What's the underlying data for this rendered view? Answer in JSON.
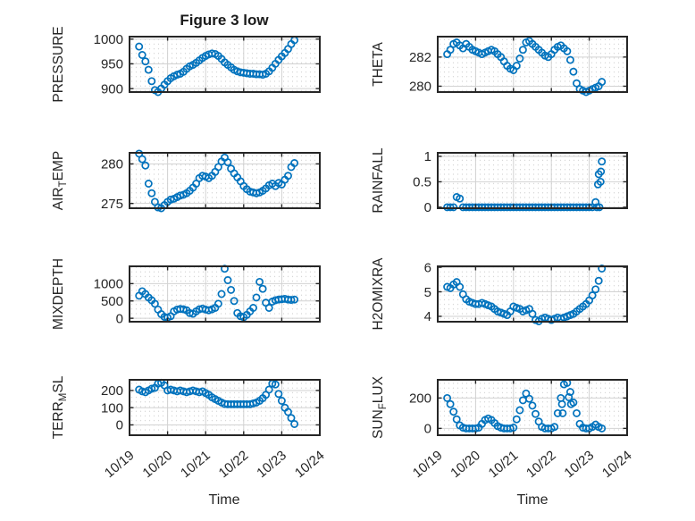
{
  "chart_data": {
    "type": "scatter",
    "title": "Figure 3 low",
    "xlabel": "Time",
    "xlim": [
      0,
      5
    ],
    "x_tick_values": [
      0,
      1,
      2,
      3,
      4,
      5
    ],
    "x_tick_labels": [
      "10/19",
      "10/20",
      "10/21",
      "10/22",
      "10/23",
      "10/24"
    ],
    "x_days": [
      0.25,
      0.333,
      0.417,
      0.5,
      0.583,
      0.667,
      0.75,
      0.833,
      0.917,
      1.0,
      1.083,
      1.167,
      1.25,
      1.333,
      1.417,
      1.5,
      1.583,
      1.667,
      1.75,
      1.833,
      1.917,
      2.0,
      2.083,
      2.167,
      2.25,
      2.333,
      2.417,
      2.5,
      2.583,
      2.667,
      2.75,
      2.833,
      2.917,
      3.0,
      3.083,
      3.167,
      3.25,
      3.333,
      3.417,
      3.5,
      3.583,
      3.667,
      3.75,
      3.833,
      3.917,
      4.0,
      4.083,
      4.167,
      4.25,
      4.333
    ],
    "marker": {
      "shape": "open-circle",
      "color": "#0072BD"
    },
    "grid": {
      "major": true,
      "minor_dotted": true
    },
    "subplots": [
      {
        "name": "PRESSURE",
        "ylabel_parts": [
          [
            "PRESSURE",
            false
          ]
        ],
        "ylim": [
          893,
          1005
        ],
        "ytick_values": [
          900,
          950,
          1000
        ],
        "ytick_labels": [
          "900",
          "950",
          "1000"
        ],
        "y": [
          985,
          968,
          955,
          938,
          915,
          897,
          893,
          900,
          908,
          915,
          921,
          925,
          928,
          930,
          934,
          940,
          945,
          948,
          952,
          957,
          962,
          966,
          969,
          971,
          970,
          966,
          960,
          953,
          948,
          943,
          938,
          935,
          933,
          932,
          931,
          930,
          930,
          929,
          929,
          928,
          930,
          935,
          942,
          950,
          958,
          965,
          972,
          980,
          990,
          998
        ],
        "extra_points": []
      },
      {
        "name": "THETA",
        "ylabel_parts": [
          [
            "THETA",
            false
          ]
        ],
        "ylim": [
          279.6,
          283.4
        ],
        "ytick_values": [
          280,
          282
        ],
        "ytick_labels": [
          "280",
          "282"
        ],
        "y": [
          282.2,
          282.5,
          282.9,
          283.0,
          282.8,
          282.6,
          282.9,
          282.7,
          282.5,
          282.4,
          282.3,
          282.2,
          282.3,
          282.4,
          282.5,
          282.4,
          282.2,
          282.0,
          281.7,
          281.4,
          281.2,
          281.1,
          281.4,
          281.9,
          282.5,
          283.0,
          283.1,
          282.9,
          282.7,
          282.5,
          282.3,
          282.1,
          282.0,
          282.2,
          282.5,
          282.7,
          282.8,
          282.6,
          282.4,
          281.8,
          281.0,
          280.2,
          279.8,
          279.7,
          279.6,
          279.7,
          279.8,
          279.9,
          280.0,
          280.3
        ],
        "extra_points": []
      },
      {
        "name": "AIR_TEMP",
        "ylabel_parts": [
          [
            "AIR",
            false
          ],
          [
            "T",
            true
          ],
          [
            "EMP",
            false
          ]
        ],
        "ylim": [
          274.4,
          281.4
        ],
        "ytick_values": [
          275,
          280
        ],
        "ytick_labels": [
          "275",
          "280"
        ],
        "y": [
          281.3,
          280.6,
          279.8,
          277.5,
          276.3,
          275.2,
          274.5,
          274.4,
          274.8,
          275.2,
          275.5,
          275.6,
          275.8,
          276.0,
          276.1,
          276.3,
          276.6,
          277.0,
          277.5,
          278.2,
          278.5,
          278.4,
          278.2,
          278.5,
          279.0,
          279.6,
          280.3,
          280.8,
          280.2,
          279.4,
          278.8,
          278.3,
          277.8,
          277.2,
          276.8,
          276.5,
          276.4,
          276.3,
          276.4,
          276.6,
          276.9,
          277.3,
          277.5,
          277.2,
          277.6,
          277.4,
          278.0,
          278.5,
          279.6,
          280.1
        ],
        "extra_points": []
      },
      {
        "name": "RAINFALL",
        "ylabel_parts": [
          [
            "RAINFALL",
            false
          ]
        ],
        "ylim": [
          -0.02,
          1.07
        ],
        "ytick_values": [
          0,
          0.5,
          1
        ],
        "ytick_labels": [
          "0",
          "0.5",
          "1"
        ],
        "y": [
          0,
          0,
          0,
          0.2,
          0.17,
          0,
          0,
          0,
          0,
          0,
          0,
          0,
          0,
          0,
          0,
          0,
          0,
          0,
          0,
          0,
          0,
          0,
          0,
          0,
          0,
          0,
          0,
          0,
          0,
          0,
          0,
          0,
          0,
          0,
          0,
          0,
          0,
          0,
          0,
          0,
          0,
          0,
          0,
          0,
          0,
          0,
          0,
          0.1,
          0.65,
          0.9
        ],
        "extra_points": [
          [
            4.2,
            0
          ],
          [
            4.27,
            0
          ],
          [
            4.23,
            0.45
          ],
          [
            4.3,
            0.5
          ],
          [
            4.31,
            0.7
          ]
        ]
      },
      {
        "name": "MIXDEPTH",
        "ylabel_parts": [
          [
            "MIXDEPTH",
            false
          ]
        ],
        "ylim": [
          -100,
          1500
        ],
        "ytick_values": [
          0,
          500,
          1000
        ],
        "ytick_labels": [
          "0",
          "500",
          "1000"
        ],
        "y": [
          650,
          780,
          700,
          600,
          520,
          420,
          250,
          120,
          40,
          20,
          60,
          200,
          250,
          270,
          260,
          230,
          150,
          130,
          200,
          260,
          280,
          250,
          230,
          260,
          300,
          420,
          700,
          1430,
          1100,
          820,
          500,
          150,
          60,
          30,
          100,
          200,
          300,
          600,
          1050,
          850,
          450,
          300,
          480,
          520,
          540,
          550,
          560,
          540,
          530,
          540
        ],
        "extra_points": []
      },
      {
        "name": "H2OMIXRA",
        "ylabel_parts": [
          [
            "H2OMIXRA",
            false
          ]
        ],
        "ylim": [
          3.78,
          6.04
        ],
        "ytick_values": [
          4,
          5,
          6
        ],
        "ytick_labels": [
          "4",
          "5",
          "6"
        ],
        "y": [
          5.2,
          5.15,
          5.3,
          5.4,
          5.2,
          4.9,
          4.7,
          4.6,
          4.55,
          4.5,
          4.5,
          4.55,
          4.5,
          4.45,
          4.4,
          4.3,
          4.2,
          4.15,
          4.1,
          4.05,
          4.2,
          4.4,
          4.35,
          4.3,
          4.2,
          4.25,
          4.3,
          4.1,
          3.85,
          3.8,
          3.9,
          3.95,
          3.9,
          3.85,
          3.9,
          3.95,
          3.9,
          3.95,
          4.0,
          4.05,
          4.1,
          4.2,
          4.3,
          4.4,
          4.5,
          4.65,
          4.85,
          5.1,
          5.45,
          5.95
        ],
        "extra_points": []
      },
      {
        "name": "TERR_MSL",
        "ylabel_parts": [
          [
            "TERR",
            false
          ],
          [
            "M",
            true
          ],
          [
            "SL",
            false
          ]
        ],
        "ylim": [
          -60,
          262
        ],
        "ytick_values": [
          0,
          100,
          200
        ],
        "ytick_labels": [
          "0",
          "100",
          "200"
        ],
        "y": [
          205,
          195,
          190,
          200,
          210,
          215,
          240,
          245,
          230,
          200,
          205,
          200,
          195,
          200,
          195,
          190,
          195,
          200,
          195,
          190,
          195,
          185,
          175,
          160,
          150,
          140,
          130,
          122,
          120,
          120,
          120,
          120,
          120,
          120,
          120,
          120,
          125,
          130,
          140,
          155,
          175,
          205,
          240,
          235,
          180,
          140,
          100,
          75,
          40,
          5
        ],
        "extra_points": []
      },
      {
        "name": "SUN_FLUX",
        "ylabel_parts": [
          [
            "SUN",
            false
          ],
          [
            "F",
            true
          ],
          [
            "LUX",
            false
          ]
        ],
        "ylim": [
          -45,
          320
        ],
        "ytick_values": [
          0,
          200
        ],
        "ytick_labels": [
          "0",
          "200"
        ],
        "y": [
          200,
          160,
          110,
          60,
          20,
          5,
          0,
          0,
          0,
          0,
          5,
          30,
          55,
          65,
          55,
          35,
          15,
          5,
          0,
          0,
          0,
          5,
          60,
          120,
          185,
          230,
          195,
          150,
          95,
          45,
          10,
          0,
          0,
          0,
          10,
          100,
          200,
          290,
          300,
          240,
          170,
          100,
          30,
          5,
          0,
          0,
          10,
          25,
          10,
          0
        ],
        "extra_points": [
          [
            3.28,
            160
          ],
          [
            3.3,
            100
          ],
          [
            3.46,
            205
          ],
          [
            3.52,
            160
          ]
        ]
      }
    ]
  },
  "style": {
    "marker_color": "#0072BD",
    "axis_color": "#262626",
    "major_grid_color": "#d2d2d2",
    "minor_dot_color": "#cccccc",
    "text_color": "#262626",
    "title_color": "#1a1a1a"
  }
}
